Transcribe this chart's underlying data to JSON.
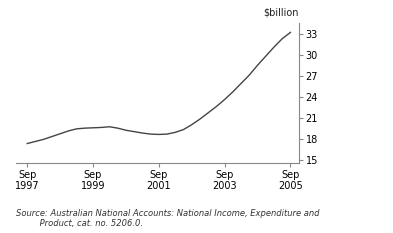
{
  "x_quarters": [
    1997.75,
    1998.0,
    1998.25,
    1998.5,
    1998.75,
    1999.0,
    1999.25,
    1999.5,
    1999.75,
    2000.0,
    2000.25,
    2000.5,
    2000.75,
    2001.0,
    2001.25,
    2001.5,
    2001.75,
    2002.0,
    2002.25,
    2002.5,
    2002.75,
    2003.0,
    2003.25,
    2003.5,
    2003.75,
    2004.0,
    2004.25,
    2004.5,
    2004.75,
    2005.0,
    2005.25,
    2005.5,
    2005.75
  ],
  "y_values": [
    17.3,
    17.6,
    17.9,
    18.3,
    18.7,
    19.1,
    19.4,
    19.5,
    19.55,
    19.6,
    19.7,
    19.5,
    19.2,
    19.0,
    18.8,
    18.65,
    18.6,
    18.65,
    18.9,
    19.3,
    20.0,
    20.8,
    21.7,
    22.6,
    23.6,
    24.7,
    25.9,
    27.1,
    28.5,
    29.8,
    31.1,
    32.3,
    33.2
  ],
  "yticks": [
    15,
    18,
    21,
    24,
    27,
    30,
    33
  ],
  "xticks": [
    1997.75,
    1999.75,
    2001.75,
    2003.75,
    2005.75
  ],
  "xtick_labels": [
    "Sep\n1997",
    "Sep\n1999",
    "Sep\n2001",
    "Sep\n2003",
    "Sep\n2005"
  ],
  "ylim": [
    14.5,
    34.5
  ],
  "xlim": [
    1997.4,
    2006.0
  ],
  "ylabel_top": "$billion",
  "line_color": "#444444",
  "line_width": 1.0,
  "source_line1": "Source: Australian National Accounts: National Income, Expenditure and",
  "source_line2": "         Product, cat. no. 5206.0.",
  "background_color": "#ffffff"
}
